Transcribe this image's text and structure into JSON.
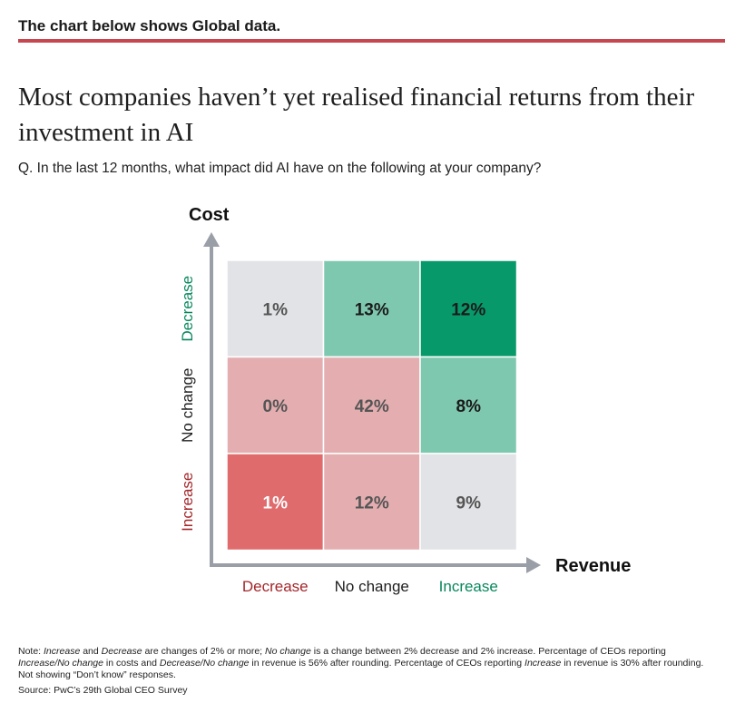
{
  "header": {
    "text": "The chart below shows Global data."
  },
  "title": "Most companies haven’t yet realised financial returns from their investment in AI",
  "question": "Q. In the last 12 months, what impact did AI have on the following at your company?",
  "note": {
    "parts": [
      {
        "t": "Note: ",
        "i": false
      },
      {
        "t": "Increase",
        "i": true
      },
      {
        "t": " and ",
        "i": false
      },
      {
        "t": "Decrease",
        "i": true
      },
      {
        "t": " are changes of 2% or more; ",
        "i": false
      },
      {
        "t": "No change",
        "i": true
      },
      {
        "t": " is a change between 2% decrease and 2% increase. Percentage of CEOs reporting ",
        "i": false
      },
      {
        "t": "Increase/No change",
        "i": true
      },
      {
        "t": " in costs and ",
        "i": false
      },
      {
        "t": "Decrease/No change",
        "i": true
      },
      {
        "t": " in revenue is 56% after rounding. Percentage of CEOs reporting ",
        "i": false
      },
      {
        "t": "Increase",
        "i": true
      },
      {
        "t": " in revenue is 30% after rounding. Not showing “Don’t know” responses.",
        "i": false
      }
    ]
  },
  "source": "Source: PwC’s 29th Global CEO Survey",
  "chart_data": {
    "type": "heatmap",
    "y_title": "Cost",
    "x_title": "Revenue",
    "x_categories": [
      "Decrease",
      "No change",
      "Increase"
    ],
    "x_category_colors": [
      "#a3262a",
      "#1e1e1e",
      "#08875e"
    ],
    "y_categories": [
      "Decrease",
      "No change",
      "Increase"
    ],
    "y_category_colors": [
      "#08875e",
      "#1e1e1e",
      "#a3262a"
    ],
    "values": [
      [
        1,
        13,
        12
      ],
      [
        0,
        42,
        8
      ],
      [
        1,
        12,
        9
      ]
    ],
    "labels": [
      [
        "1%",
        "13%",
        "12%"
      ],
      [
        "0%",
        "42%",
        "8%"
      ],
      [
        "1%",
        "12%",
        "9%"
      ]
    ],
    "cell_colors": [
      [
        "#e1e3e6",
        "#7fc8b0",
        "#08996a"
      ],
      [
        "#e4aeb0",
        "#e4aeb0",
        "#7fc8b0"
      ],
      [
        "#e06b6c",
        "#e4aeb0",
        "#e1e3e6"
      ]
    ],
    "label_colors": [
      [
        "#555555",
        "#1a1a1a",
        "#1a1a1a"
      ],
      [
        "#555555",
        "#555555",
        "#1a1a1a"
      ],
      [
        "#ffffff",
        "#555555",
        "#555555"
      ]
    ],
    "axis_color": "#9a9ea6"
  }
}
